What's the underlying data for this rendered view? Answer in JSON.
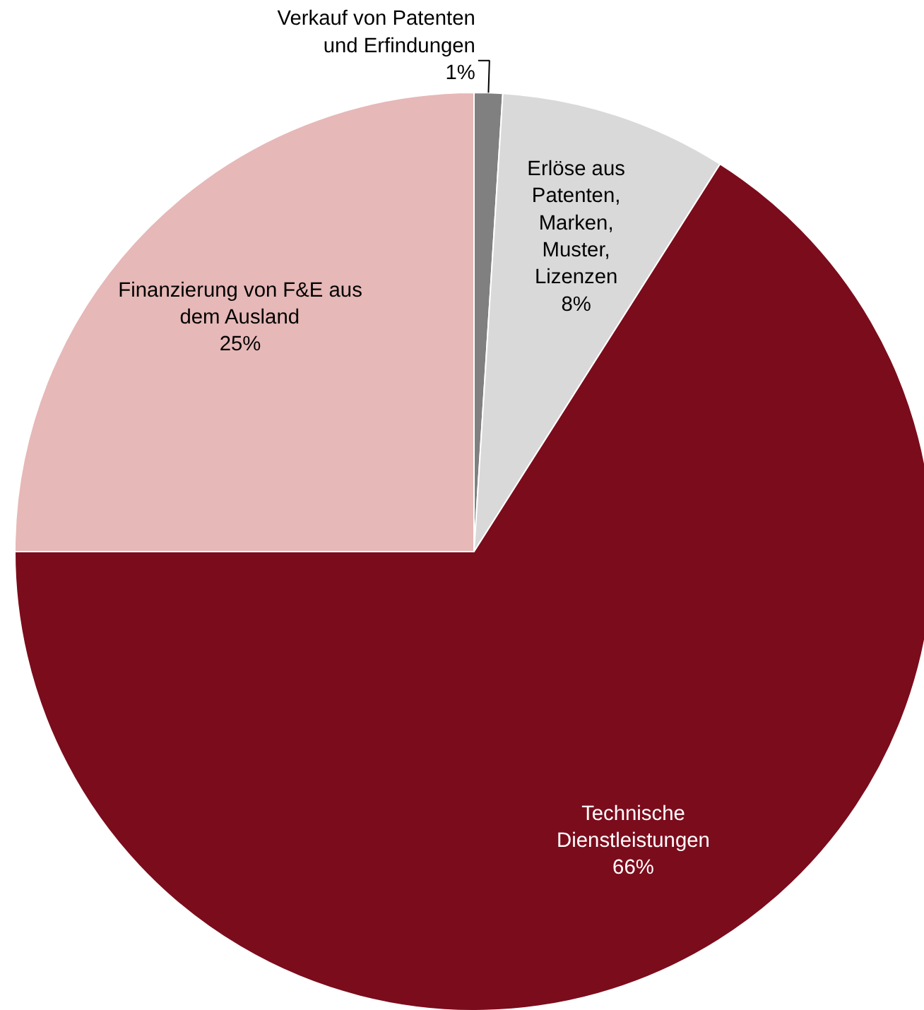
{
  "chart_data": {
    "type": "pie",
    "categories": [
      "Verkauf von Patenten\nund Erfindungen",
      "Erlöse aus\nPatenten,\nMarken,\nMuster,\nLizenzen",
      "Technische\nDienstleistungen",
      "Finanzierung von F&E aus\ndem Ausland"
    ],
    "values": [
      1,
      8,
      66,
      25
    ],
    "colors": [
      "#808080",
      "#d9d9d9",
      "#7b0c1c",
      "#e6b8b7"
    ],
    "value_labels": [
      "1%",
      "8%",
      "66%",
      "25%"
    ]
  }
}
